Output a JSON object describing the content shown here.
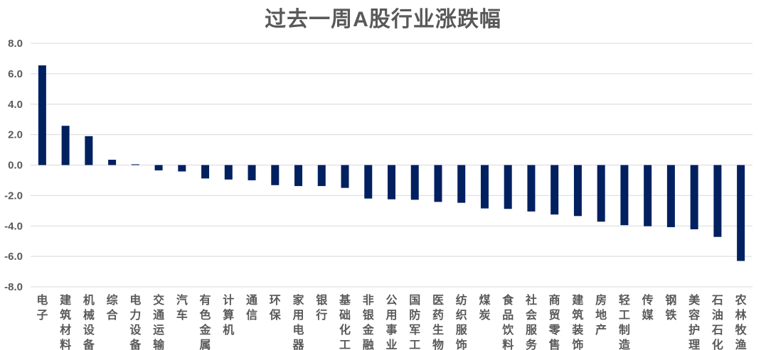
{
  "chart_data": {
    "type": "bar",
    "title": "过去一周A股行业涨跌幅",
    "xlabel": "",
    "ylabel": "",
    "ylim": [
      -8,
      8
    ],
    "yticks": [
      "8.0",
      "6.0",
      "4.0",
      "2.0",
      "0.0",
      "-2.0",
      "-4.0",
      "-6.0",
      "-8.0"
    ],
    "grid": true,
    "bar_color": "#002060",
    "categories": [
      "电子",
      "建筑材料",
      "机械设备",
      "综合",
      "电力设备",
      "交通运输",
      "汽车",
      "有色金属",
      "计算机",
      "通信",
      "环保",
      "家用电器",
      "银行",
      "基础化工",
      "非银金融",
      "公用事业",
      "国防军工",
      "医药生物",
      "纺织服饰",
      "煤炭",
      "食品饮料",
      "社会服务",
      "商贸零售",
      "建筑装饰",
      "房地产",
      "轻工制造",
      "传媒",
      "钢铁",
      "美容护理",
      "石油石化",
      "农林牧渔"
    ],
    "values": [
      6.55,
      2.58,
      1.9,
      0.35,
      0.05,
      -0.35,
      -0.42,
      -0.88,
      -0.95,
      -1.0,
      -1.32,
      -1.38,
      -1.38,
      -1.5,
      -2.2,
      -2.25,
      -2.28,
      -2.42,
      -2.48,
      -2.85,
      -2.88,
      -3.05,
      -3.25,
      -3.35,
      -3.72,
      -3.95,
      -4.02,
      -4.08,
      -4.22,
      -4.72,
      -6.3
    ]
  }
}
